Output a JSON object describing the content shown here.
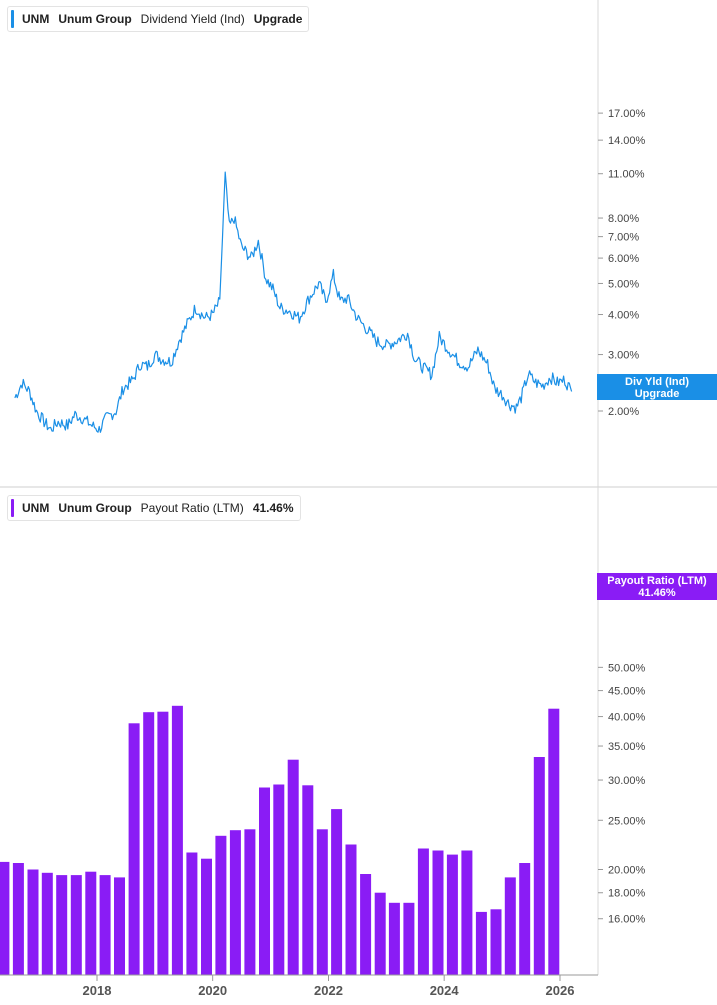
{
  "top_legend": {
    "ticker": "UNM",
    "company": "Unum Group",
    "metric": "Dividend Yield (Ind)",
    "value": "Upgrade",
    "color": "#1a8fe6"
  },
  "bottom_legend": {
    "ticker": "UNM",
    "company": "Unum Group",
    "metric": "Payout Ratio (LTM)",
    "value": "41.46%",
    "color": "#8a1cf5"
  },
  "top_tag": {
    "line1": "Div Yld (Ind)",
    "line2": "Upgrade"
  },
  "bottom_tag": {
    "line1": "Payout Ratio (LTM)",
    "line2": "41.46%"
  },
  "chart_data": [
    {
      "type": "line",
      "series": [
        {
          "name": "Dividend Yield (Ind)",
          "color": "#1a8fe6"
        }
      ],
      "scale": "log",
      "y_ticks": [
        "17.00%",
        "14.00%",
        "11.00%",
        "8.00%",
        "7.00%",
        "6.00%",
        "5.00%",
        "4.00%",
        "3.00%",
        "2.00%"
      ],
      "y_tick_values": [
        17,
        14,
        11,
        8,
        7,
        6,
        5,
        4,
        3,
        2
      ],
      "x_ticks": [
        "2018",
        "2020",
        "2022",
        "2024",
        "2026"
      ],
      "points": [
        [
          "2016-08-01",
          2.2
        ],
        [
          "2016-09-15",
          2.45
        ],
        [
          "2016-11-01",
          2.3
        ],
        [
          "2016-12-15",
          2.0
        ],
        [
          "2017-02-01",
          1.85
        ],
        [
          "2017-03-15",
          1.75
        ],
        [
          "2017-05-01",
          1.85
        ],
        [
          "2017-07-01",
          1.8
        ],
        [
          "2017-08-15",
          1.95
        ],
        [
          "2017-10-01",
          1.9
        ],
        [
          "2017-12-01",
          1.8
        ],
        [
          "2018-01-15",
          1.75
        ],
        [
          "2018-03-01",
          1.9
        ],
        [
          "2018-05-01",
          2.0
        ],
        [
          "2018-06-15",
          2.35
        ],
        [
          "2018-08-15",
          2.5
        ],
        [
          "2018-10-01",
          2.8
        ],
        [
          "2018-11-15",
          2.75
        ],
        [
          "2019-01-01",
          3.0
        ],
        [
          "2019-02-15",
          2.9
        ],
        [
          "2019-04-15",
          2.85
        ],
        [
          "2019-06-01",
          3.3
        ],
        [
          "2019-08-01",
          3.8
        ],
        [
          "2019-09-15",
          4.2
        ],
        [
          "2019-11-15",
          3.9
        ],
        [
          "2020-01-01",
          4.0
        ],
        [
          "2020-02-15",
          4.4
        ],
        [
          "2020-03-20",
          11.0
        ],
        [
          "2020-04-15",
          7.5
        ],
        [
          "2020-05-15",
          8.0
        ],
        [
          "2020-07-01",
          6.5
        ],
        [
          "2020-09-01",
          6.0
        ],
        [
          "2020-10-15",
          6.8
        ],
        [
          "2020-12-01",
          5.2
        ],
        [
          "2021-01-15",
          4.8
        ],
        [
          "2021-03-01",
          4.2
        ],
        [
          "2021-05-01",
          4.1
        ],
        [
          "2021-07-01",
          3.9
        ],
        [
          "2021-09-01",
          4.5
        ],
        [
          "2021-11-01",
          5.0
        ],
        [
          "2021-12-15",
          4.4
        ],
        [
          "2022-02-01",
          5.3
        ],
        [
          "2022-03-15",
          4.4
        ],
        [
          "2022-05-01",
          4.5
        ],
        [
          "2022-07-01",
          3.9
        ],
        [
          "2022-09-01",
          3.6
        ],
        [
          "2022-11-01",
          3.3
        ],
        [
          "2023-01-01",
          3.2
        ],
        [
          "2023-03-01",
          3.3
        ],
        [
          "2023-05-15",
          3.5
        ],
        [
          "2023-07-01",
          2.9
        ],
        [
          "2023-09-01",
          2.7
        ],
        [
          "2023-10-15",
          2.6
        ],
        [
          "2023-12-01",
          3.4
        ],
        [
          "2024-02-01",
          3.1
        ],
        [
          "2024-04-01",
          2.85
        ],
        [
          "2024-06-01",
          2.75
        ],
        [
          "2024-08-01",
          3.1
        ],
        [
          "2024-10-01",
          2.8
        ],
        [
          "2024-11-15",
          2.35
        ],
        [
          "2025-01-01",
          2.25
        ],
        [
          "2025-02-15",
          2.1
        ],
        [
          "2025-04-01",
          2.05
        ],
        [
          "2025-05-01",
          2.2
        ],
        [
          "2025-06-15",
          2.6
        ],
        [
          "2025-08-01",
          2.45
        ],
        [
          "2025-09-15",
          2.4
        ],
        [
          "2025-11-01",
          2.55
        ],
        [
          "2025-12-15",
          2.45
        ],
        [
          "2026-02-01",
          2.5
        ],
        [
          "2026-03-15",
          2.3
        ]
      ]
    },
    {
      "type": "bar",
      "series": [
        {
          "name": "Payout Ratio (LTM)",
          "color": "#8a1cf5"
        }
      ],
      "scale": "log",
      "y_ticks": [
        "50.00%",
        "45.00%",
        "40.00%",
        "35.00%",
        "30.00%",
        "25.00%",
        "20.00%",
        "18.00%",
        "16.00%"
      ],
      "y_tick_values": [
        50,
        45,
        40,
        35,
        30,
        25,
        20,
        18,
        16
      ],
      "x_ticks": [
        "2018",
        "2020",
        "2022",
        "2024",
        "2026"
      ],
      "bars": [
        [
          "2016-06-30",
          20.7
        ],
        [
          "2016-09-30",
          20.6
        ],
        [
          "2016-12-31",
          20.0
        ],
        [
          "2017-03-31",
          19.7
        ],
        [
          "2017-06-30",
          19.5
        ],
        [
          "2017-09-30",
          19.5
        ],
        [
          "2017-12-31",
          19.8
        ],
        [
          "2018-03-31",
          19.5
        ],
        [
          "2018-06-30",
          19.3
        ],
        [
          "2018-09-30",
          38.8
        ],
        [
          "2018-12-31",
          40.8
        ],
        [
          "2019-03-31",
          40.9
        ],
        [
          "2019-06-30",
          42.0
        ],
        [
          "2019-09-30",
          21.6
        ],
        [
          "2019-12-31",
          21.0
        ],
        [
          "2020-03-31",
          23.3
        ],
        [
          "2020-06-30",
          23.9
        ],
        [
          "2020-09-30",
          24.0
        ],
        [
          "2020-12-31",
          29.0
        ],
        [
          "2021-03-31",
          29.4
        ],
        [
          "2021-06-30",
          32.9
        ],
        [
          "2021-09-30",
          29.3
        ],
        [
          "2021-12-31",
          24.0
        ],
        [
          "2022-03-31",
          26.3
        ],
        [
          "2022-06-30",
          22.4
        ],
        [
          "2022-09-30",
          19.6
        ],
        [
          "2022-12-31",
          18.0
        ],
        [
          "2023-03-31",
          17.2
        ],
        [
          "2023-06-30",
          17.2
        ],
        [
          "2023-09-30",
          22.0
        ],
        [
          "2023-12-31",
          21.8
        ],
        [
          "2024-03-31",
          21.4
        ],
        [
          "2024-06-30",
          21.8
        ],
        [
          "2024-09-30",
          16.5
        ],
        [
          "2024-12-31",
          16.7
        ],
        [
          "2025-03-31",
          19.3
        ],
        [
          "2025-06-30",
          20.6
        ],
        [
          "2025-09-30",
          33.3
        ],
        [
          "2025-12-31",
          41.46
        ]
      ]
    }
  ]
}
